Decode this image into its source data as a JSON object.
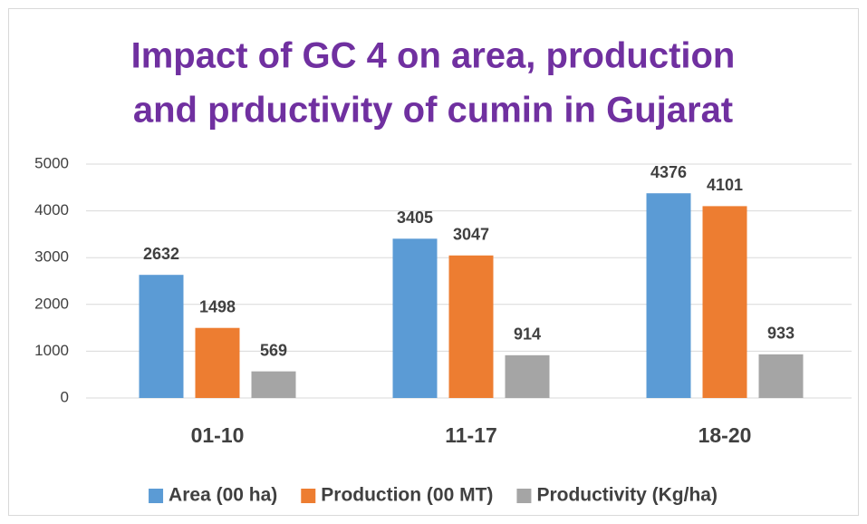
{
  "chart_data": {
    "type": "bar",
    "title": [
      "Impact of GC 4 on area, production",
      "and prductivity of cumin in Gujarat"
    ],
    "categories": [
      "01-10",
      "11-17",
      "18-20"
    ],
    "series": [
      {
        "name": "Area (00 ha)",
        "color": "#5b9bd5",
        "values": [
          2632,
          3405,
          4376
        ]
      },
      {
        "name": "Production (00 MT)",
        "color": "#ed7d31",
        "values": [
          1498,
          3047,
          4101
        ]
      },
      {
        "name": "Productivity (Kg/ha)",
        "color": "#a5a5a5",
        "values": [
          569,
          914,
          933
        ]
      }
    ],
    "ylim": [
      0,
      5000
    ],
    "yticks": [
      0,
      1000,
      2000,
      3000,
      4000,
      5000
    ],
    "grid": true,
    "legend": "bottom"
  }
}
